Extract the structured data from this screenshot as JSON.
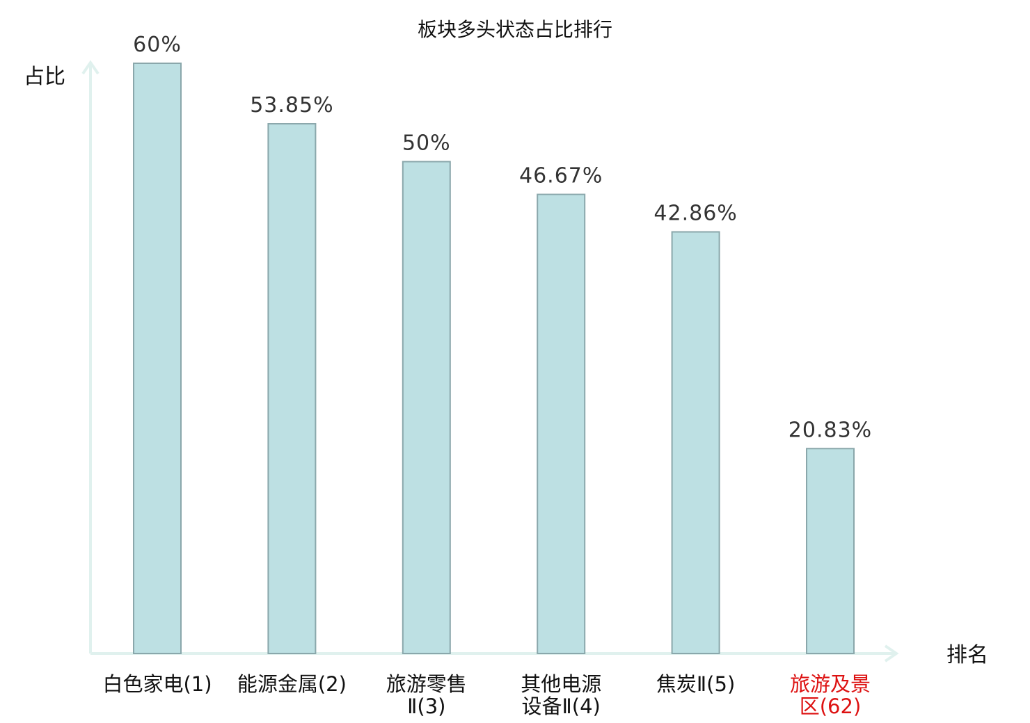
{
  "chart_data": {
    "type": "bar",
    "title": "板块多头状态占比排行",
    "xlabel": "排名",
    "ylabel": "占比",
    "ylim": [
      0,
      60
    ],
    "categories": [
      [
        "白色家电(1)"
      ],
      [
        "能源金属(2)"
      ],
      [
        "旅游零售",
        "Ⅱ(3)"
      ],
      [
        "其他电源",
        "设备Ⅱ(4)"
      ],
      [
        "焦炭Ⅱ(5)"
      ],
      [
        "旅游及景",
        "区(62)"
      ]
    ],
    "values": [
      60,
      53.85,
      50,
      46.67,
      42.86,
      20.83
    ],
    "value_labels": [
      "60%",
      "53.85%",
      "50%",
      "46.67%",
      "42.86%",
      "20.83%"
    ],
    "highlight_index": 5,
    "colors": {
      "bar_fill": "#bde0e3",
      "bar_stroke": "#8aa7ab",
      "axis": "#e0f1ee",
      "highlight_text": "#dd1111"
    }
  }
}
